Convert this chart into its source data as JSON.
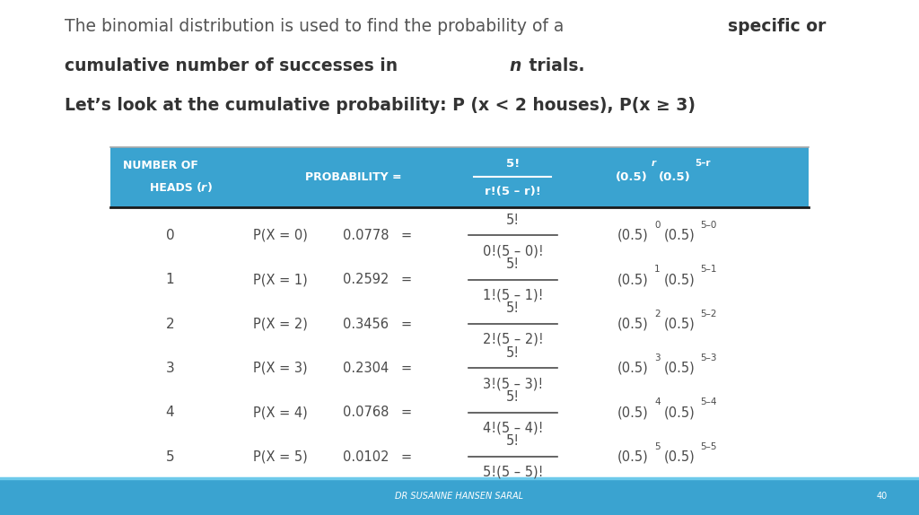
{
  "bg_color": "#ffffff",
  "footer_color": "#3aa3d0",
  "header_color": "#3aa3d0",
  "footer_text": "DR SUSANNE HANSEN SARAL",
  "footer_page": "40",
  "header_text_color": "#ffffff",
  "body_text_color": "#4a4a4a",
  "rows": [
    {
      "r": "0",
      "px": "P(X = 0)",
      "prob": "0.0778",
      "num": "0",
      "denom": "0"
    },
    {
      "r": "1",
      "px": "P(X = 1)",
      "prob": "0.2592",
      "num": "1",
      "denom": "1"
    },
    {
      "r": "2",
      "px": "P(X = 2)",
      "prob": "0.3456",
      "num": "2",
      "denom": "2"
    },
    {
      "r": "3",
      "px": "P(X = 3)",
      "prob": "0.2304",
      "num": "3",
      "denom": "3"
    },
    {
      "r": "4",
      "px": "P(X = 4)",
      "prob": "0.0768",
      "num": "4",
      "denom": "4"
    },
    {
      "r": "5",
      "px": "P(X = 5)",
      "prob": "0.0102",
      "num": "5",
      "denom": "5"
    }
  ]
}
